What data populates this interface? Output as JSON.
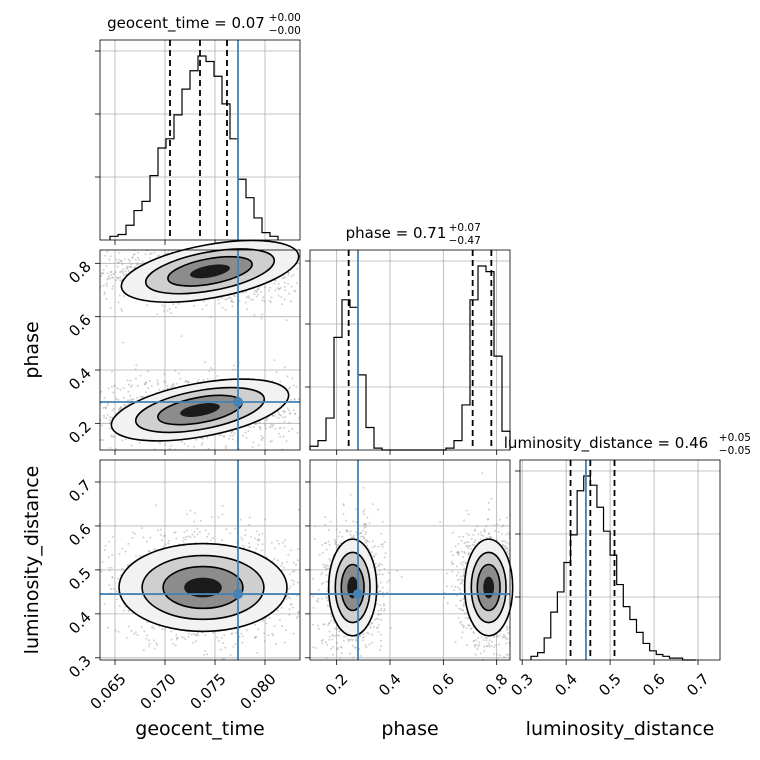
{
  "chart_data": {
    "type": "corner",
    "parameters": [
      "geocent_time",
      "phase",
      "luminosity_distance"
    ],
    "xlabels": [
      "geocent_time",
      "phase",
      "luminosity_distance"
    ],
    "ylabels": [
      "",
      "phase",
      "luminosity_distance"
    ],
    "ranges": {
      "geocent_time": [
        0.0635,
        0.0835
      ],
      "phase": [
        0.1,
        0.85
      ],
      "luminosity_distance": [
        0.295,
        0.75
      ]
    },
    "ticks": {
      "geocent_time": [
        "0.065",
        "0.070",
        "0.075",
        "0.080"
      ],
      "phase": [
        "0.2",
        "0.4",
        "0.6",
        "0.8"
      ],
      "luminosity_distance": [
        "0.3",
        "0.4",
        "0.5",
        "0.6",
        "0.7"
      ]
    },
    "truths": {
      "geocent_time": 0.0773,
      "phase": 0.28,
      "luminosity_distance": 0.445
    },
    "quantiles": {
      "geocent_time": [
        0.0705,
        0.0735,
        0.0762
      ],
      "phase": [
        0.245,
        0.71,
        0.78
      ],
      "luminosity_distance": [
        0.41,
        0.455,
        0.51
      ]
    },
    "titles": [
      {
        "param": "geocent_time",
        "label": "geocent_time = 0.07",
        "plus": "+0.00",
        "minus": "−0.00"
      },
      {
        "param": "phase",
        "label": "phase = 0.71",
        "plus": "+0.07",
        "minus": "−0.47"
      },
      {
        "param": "luminosity_distance",
        "label": "luminosity_distance = 0.46",
        "plus": "+0.05",
        "minus": "−0.05"
      }
    ],
    "histograms": {
      "geocent_time": {
        "edges": [
          0.0645,
          0.0653,
          0.0661,
          0.0669,
          0.0677,
          0.0685,
          0.0693,
          0.0701,
          0.0709,
          0.0717,
          0.0725,
          0.0733,
          0.0741,
          0.0749,
          0.0757,
          0.0765,
          0.0773,
          0.0781,
          0.0789,
          0.0797,
          0.0805,
          0.0813
        ],
        "counts": [
          2,
          3,
          8,
          16,
          21,
          35,
          50,
          55,
          68,
          82,
          92,
          100,
          97,
          89,
          74,
          55,
          33,
          23,
          12,
          4,
          2
        ]
      },
      "phase": {
        "edges": [
          0.1,
          0.13,
          0.16,
          0.19,
          0.22,
          0.25,
          0.28,
          0.31,
          0.34,
          0.37,
          0.4,
          0.43,
          0.46,
          0.49,
          0.52,
          0.55,
          0.58,
          0.61,
          0.64,
          0.67,
          0.7,
          0.73,
          0.76,
          0.79,
          0.82,
          0.85
        ],
        "counts": [
          2,
          5,
          17,
          60,
          80,
          76,
          40,
          12,
          1,
          0,
          0,
          0,
          0,
          0,
          0,
          0,
          0,
          1,
          5,
          24,
          80,
          98,
          95,
          50,
          10
        ]
      },
      "luminosity_distance": {
        "edges": [
          0.32,
          0.335,
          0.35,
          0.365,
          0.38,
          0.395,
          0.41,
          0.425,
          0.44,
          0.455,
          0.47,
          0.485,
          0.5,
          0.515,
          0.53,
          0.545,
          0.56,
          0.575,
          0.59,
          0.605,
          0.62,
          0.635,
          0.65,
          0.665,
          0.68,
          0.695
        ],
        "counts": [
          2,
          4,
          12,
          26,
          37,
          53,
          68,
          92,
          100,
          95,
          83,
          70,
          57,
          41,
          29,
          22,
          15,
          9,
          5,
          3,
          2,
          1,
          1,
          0,
          0
        ]
      }
    },
    "density_2d": [
      {
        "x": "geocent_time",
        "y": "phase",
        "blobs": [
          {
            "cx": 0.0745,
            "cy": 0.77,
            "rx": 0.0045,
            "ry": 0.05,
            "angle_deg": 4,
            "weight": 1.0
          },
          {
            "cx": 0.0735,
            "cy": 0.25,
            "rx": 0.0045,
            "ry": 0.05,
            "angle_deg": 4,
            "weight": 0.9
          }
        ]
      },
      {
        "x": "geocent_time",
        "y": "luminosity_distance",
        "blobs": [
          {
            "cx": 0.0738,
            "cy": 0.46,
            "rx": 0.0042,
            "ry": 0.05,
            "angle_deg": 0,
            "weight": 1.0
          }
        ]
      },
      {
        "x": "phase",
        "y": "luminosity_distance",
        "blobs": [
          {
            "cx": 0.26,
            "cy": 0.46,
            "rx": 0.045,
            "ry": 0.055,
            "angle_deg": 0,
            "weight": 0.85
          },
          {
            "cx": 0.77,
            "cy": 0.46,
            "rx": 0.045,
            "ry": 0.055,
            "angle_deg": 0,
            "weight": 1.0
          }
        ]
      }
    ],
    "colors": {
      "truth": "#4682b4",
      "hist": "#000000",
      "scatter": "#9a9a9a",
      "density_dark": "#000000",
      "grid": "#b0b0b0"
    },
    "grid": true
  }
}
